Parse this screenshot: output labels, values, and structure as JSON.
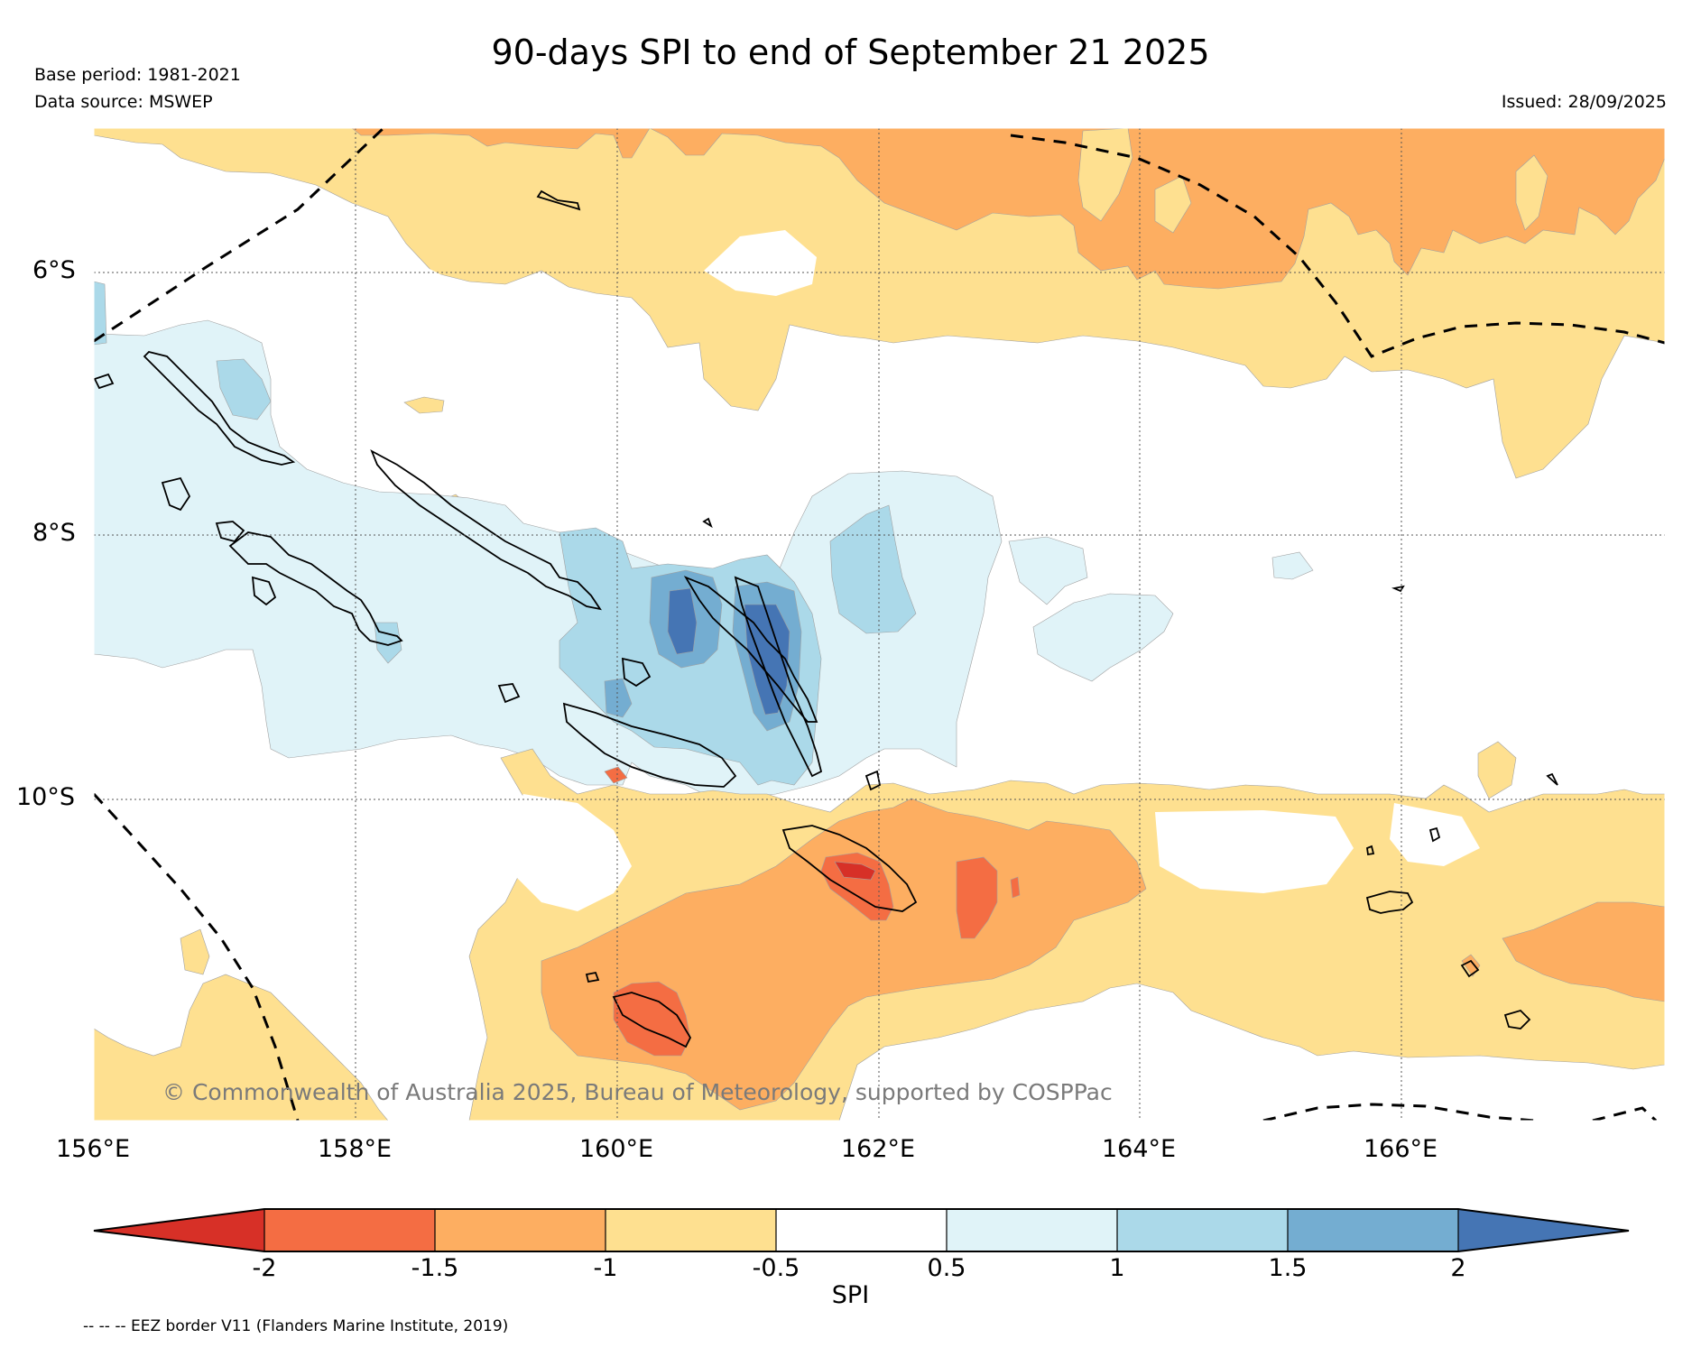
{
  "title": "90-days SPI to end of September 21 2025",
  "base_period": "Base period: 1981-2021",
  "data_source": "Data source: MSWEP",
  "issued": "Issued: 28/09/2025",
  "watermark": "© Commonwealth of Australia 2025, Bureau of Meteorology, supported by COSPPac",
  "footnote": "-- -- -- EEZ border V11 (Flanders Marine Institute, 2019)",
  "axes": {
    "lat_labels": [
      "6°S",
      "8°S",
      "10°S"
    ],
    "lon_labels": [
      "156°E",
      "158°E",
      "160°E",
      "162°E",
      "164°E",
      "166°E"
    ]
  },
  "colorbar": {
    "title": "SPI",
    "ticks": [
      "-2",
      "-1.5",
      "-1",
      "-0.5",
      "0.5",
      "1",
      "1.5",
      "2"
    ],
    "colors": {
      "below_-2": "#d73027",
      "-2_-1.5": "#f46d43",
      "-1.5_-1": "#fdae61",
      "-1_-0.5": "#fee090",
      "-0.5_0.5": "#ffffff",
      "0.5_1": "#e0f3f8",
      "1_1.5": "#abd9e9",
      "1.5_2": "#74add1",
      "above_2": "#4575b4"
    }
  },
  "colors": {
    "dry_extreme": "#d73027",
    "dry_severe": "#f46d43",
    "dry_moderate": "#fdae61",
    "dry_mild": "#fee090",
    "wet_mild": "#e0f3f8",
    "wet_moderate": "#abd9e9",
    "wet_severe": "#74add1",
    "wet_extreme": "#4575b4"
  }
}
